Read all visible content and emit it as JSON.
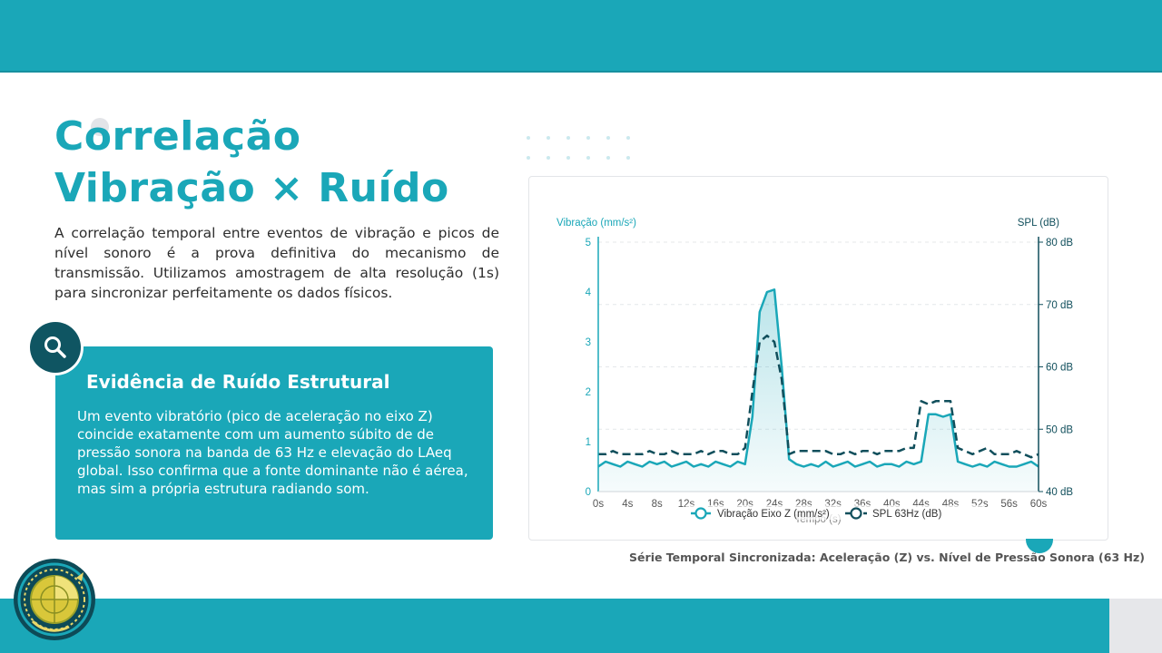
{
  "slide": {
    "title_line1": "Correlação",
    "title_line2": "Vibração × Ruído",
    "intro": "A correlação temporal entre eventos de vibração e picos de nível sonoro é a prova definitiva do mecanismo de transmissão. Utilizamos amostragem de alta resolução (1s) para sincronizar perfeitamente os dados físicos."
  },
  "card": {
    "icon": "search-icon",
    "title": "Evidência de Ruído Estrutural",
    "text": "Um evento vibratório (pico de aceleração no eixo Z) coincide exatamente com um aumento súbito de de pressão sonora na banda de 63 Hz e elevação do LAeq global. Isso confirma que a fonte dominante não é aérea, mas sim a própria estrutura radiando som."
  },
  "chart_caption": "Série Temporal Sincronizada: Aceleração (Z) vs. Nível de Pressão Sonora (63 Hz)",
  "colors": {
    "brand": "#1aa7b8",
    "dark": "#0f5562",
    "vibration": "#1aa7b8",
    "spl": "#114f5c"
  },
  "chart_data": {
    "type": "line",
    "xlabel": "Tempo (s)",
    "ylabel_left": "Vibração (mm/s²)",
    "ylabel_right": "SPL (dB)",
    "x_ticks": [
      "0s",
      "4s",
      "8s",
      "12s",
      "16s",
      "20s",
      "24s",
      "28s",
      "32s",
      "36s",
      "40s",
      "44s",
      "48s",
      "52s",
      "56s",
      "60s"
    ],
    "y_left_ticks": [
      "0",
      "1",
      "2",
      "3",
      "4",
      "5"
    ],
    "y_right_ticks": [
      "40 dB",
      "50 dB",
      "60 dB",
      "70 dB",
      "80 dB"
    ],
    "ylim_left": [
      0,
      5
    ],
    "ylim_right": [
      40,
      80
    ],
    "xlim": [
      0,
      60
    ],
    "grid": "horizontal dashed",
    "legend_position": "bottom",
    "x": [
      0,
      1,
      2,
      3,
      4,
      5,
      6,
      7,
      8,
      9,
      10,
      11,
      12,
      13,
      14,
      15,
      16,
      17,
      18,
      19,
      20,
      21,
      22,
      23,
      24,
      25,
      26,
      27,
      28,
      29,
      30,
      31,
      32,
      33,
      34,
      35,
      36,
      37,
      38,
      39,
      40,
      41,
      42,
      43,
      44,
      45,
      46,
      47,
      48,
      49,
      50,
      51,
      52,
      53,
      54,
      55,
      56,
      57,
      58,
      59,
      60
    ],
    "series": [
      {
        "name": "Vibração Eixo Z (mm/s²)",
        "axis": "left",
        "style": "solid-filled",
        "values": [
          0.5,
          0.6,
          0.55,
          0.5,
          0.6,
          0.55,
          0.5,
          0.6,
          0.55,
          0.6,
          0.5,
          0.55,
          0.6,
          0.5,
          0.55,
          0.5,
          0.6,
          0.55,
          0.5,
          0.6,
          0.55,
          1.5,
          3.6,
          4.0,
          4.05,
          2.5,
          0.65,
          0.55,
          0.5,
          0.55,
          0.5,
          0.6,
          0.5,
          0.55,
          0.6,
          0.5,
          0.55,
          0.6,
          0.5,
          0.55,
          0.55,
          0.5,
          0.6,
          0.55,
          0.6,
          1.55,
          1.55,
          1.5,
          1.55,
          0.6,
          0.55,
          0.5,
          0.55,
          0.5,
          0.6,
          0.55,
          0.5,
          0.5,
          0.55,
          0.6,
          0.5
        ]
      },
      {
        "name": "SPL 63Hz (dB)",
        "axis": "right",
        "style": "dashed",
        "values": [
          46,
          46,
          46.5,
          46,
          46,
          46,
          46,
          46.5,
          46,
          46,
          46.5,
          46,
          46,
          46,
          46.5,
          46,
          46.5,
          46.5,
          46,
          46,
          47,
          56,
          64,
          65,
          64,
          58,
          46,
          46.5,
          46.5,
          46.5,
          46.5,
          46.5,
          46,
          46,
          46.5,
          46,
          46.5,
          46.5,
          46,
          46.5,
          46.5,
          46.5,
          47,
          47,
          54.5,
          54,
          54.5,
          54.5,
          54.5,
          47,
          46.5,
          46,
          46.5,
          47,
          46,
          46,
          46,
          46.5,
          46,
          45.5,
          46
        ]
      }
    ]
  }
}
